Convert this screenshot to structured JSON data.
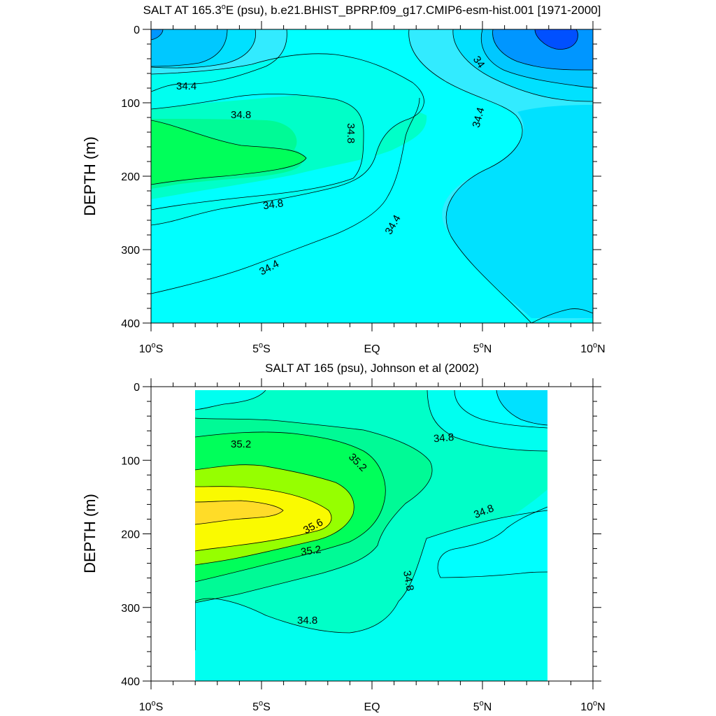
{
  "chart_data": [
    {
      "type": "contour",
      "title": "SALT AT 165.3°E (psu), b.e21.BHIST_BPRP.f09_g17.CMIP6-esm-hist.001 [1971-2000]",
      "title_main": "SALT AT 165.3",
      "title_deg": "o",
      "title_rest": "E (psu), b.e21.BHIST_BPRP.f09_g17.CMIP6-esm-hist.001 [1971-2000]",
      "ylabel": "DEPTH (m)",
      "xlim": [
        -10,
        10
      ],
      "ylim": [
        400,
        0
      ],
      "yticks": [
        "0",
        "100",
        "200",
        "300",
        "400"
      ],
      "xticks": [
        {
          "value": -10,
          "num": "10",
          "deg": "o",
          "hem": "S"
        },
        {
          "value": -5,
          "num": "5",
          "deg": "o",
          "hem": "S"
        },
        {
          "value": 0,
          "num": "EQ",
          "deg": "",
          "hem": ""
        },
        {
          "value": 5,
          "num": "5",
          "deg": "o",
          "hem": "N"
        },
        {
          "value": 10,
          "num": "10",
          "deg": "o",
          "hem": "N"
        }
      ],
      "contour_labels": [
        "34.4",
        "34.8",
        "34.8",
        "34.8",
        "34.4",
        "34.4",
        "34",
        "34.4"
      ],
      "fill_colors": [
        "#0050ff",
        "#0096ff",
        "#00c8ff",
        "#00e1ff",
        "#00ffff",
        "#32ebff",
        "#00fff0",
        "#00ffc8",
        "#00fa96",
        "#00ff5a",
        "#32ff32",
        "#96ff00",
        "#fafa00",
        "#ffdc28"
      ]
    },
    {
      "type": "contour",
      "title": "SALT AT 165 (psu), Johnson et al (2002)",
      "ylabel": "DEPTH (m)",
      "xlim": [
        -10,
        10
      ],
      "ylim": [
        400,
        0
      ],
      "data_xrange": [
        -8,
        8
      ],
      "yticks": [
        "0",
        "100",
        "200",
        "300",
        "400"
      ],
      "xticks": [
        {
          "value": -10,
          "num": "10",
          "deg": "o",
          "hem": "S"
        },
        {
          "value": -5,
          "num": "5",
          "deg": "o",
          "hem": "S"
        },
        {
          "value": 0,
          "num": "EQ",
          "deg": "",
          "hem": ""
        },
        {
          "value": 5,
          "num": "5",
          "deg": "o",
          "hem": "N"
        },
        {
          "value": 10,
          "num": "10",
          "deg": "o",
          "hem": "N"
        }
      ],
      "contour_labels": [
        "35.2",
        "35.2",
        "34.8",
        "34.8",
        "35.6",
        "35.2",
        "34.8",
        "34.8"
      ]
    }
  ]
}
